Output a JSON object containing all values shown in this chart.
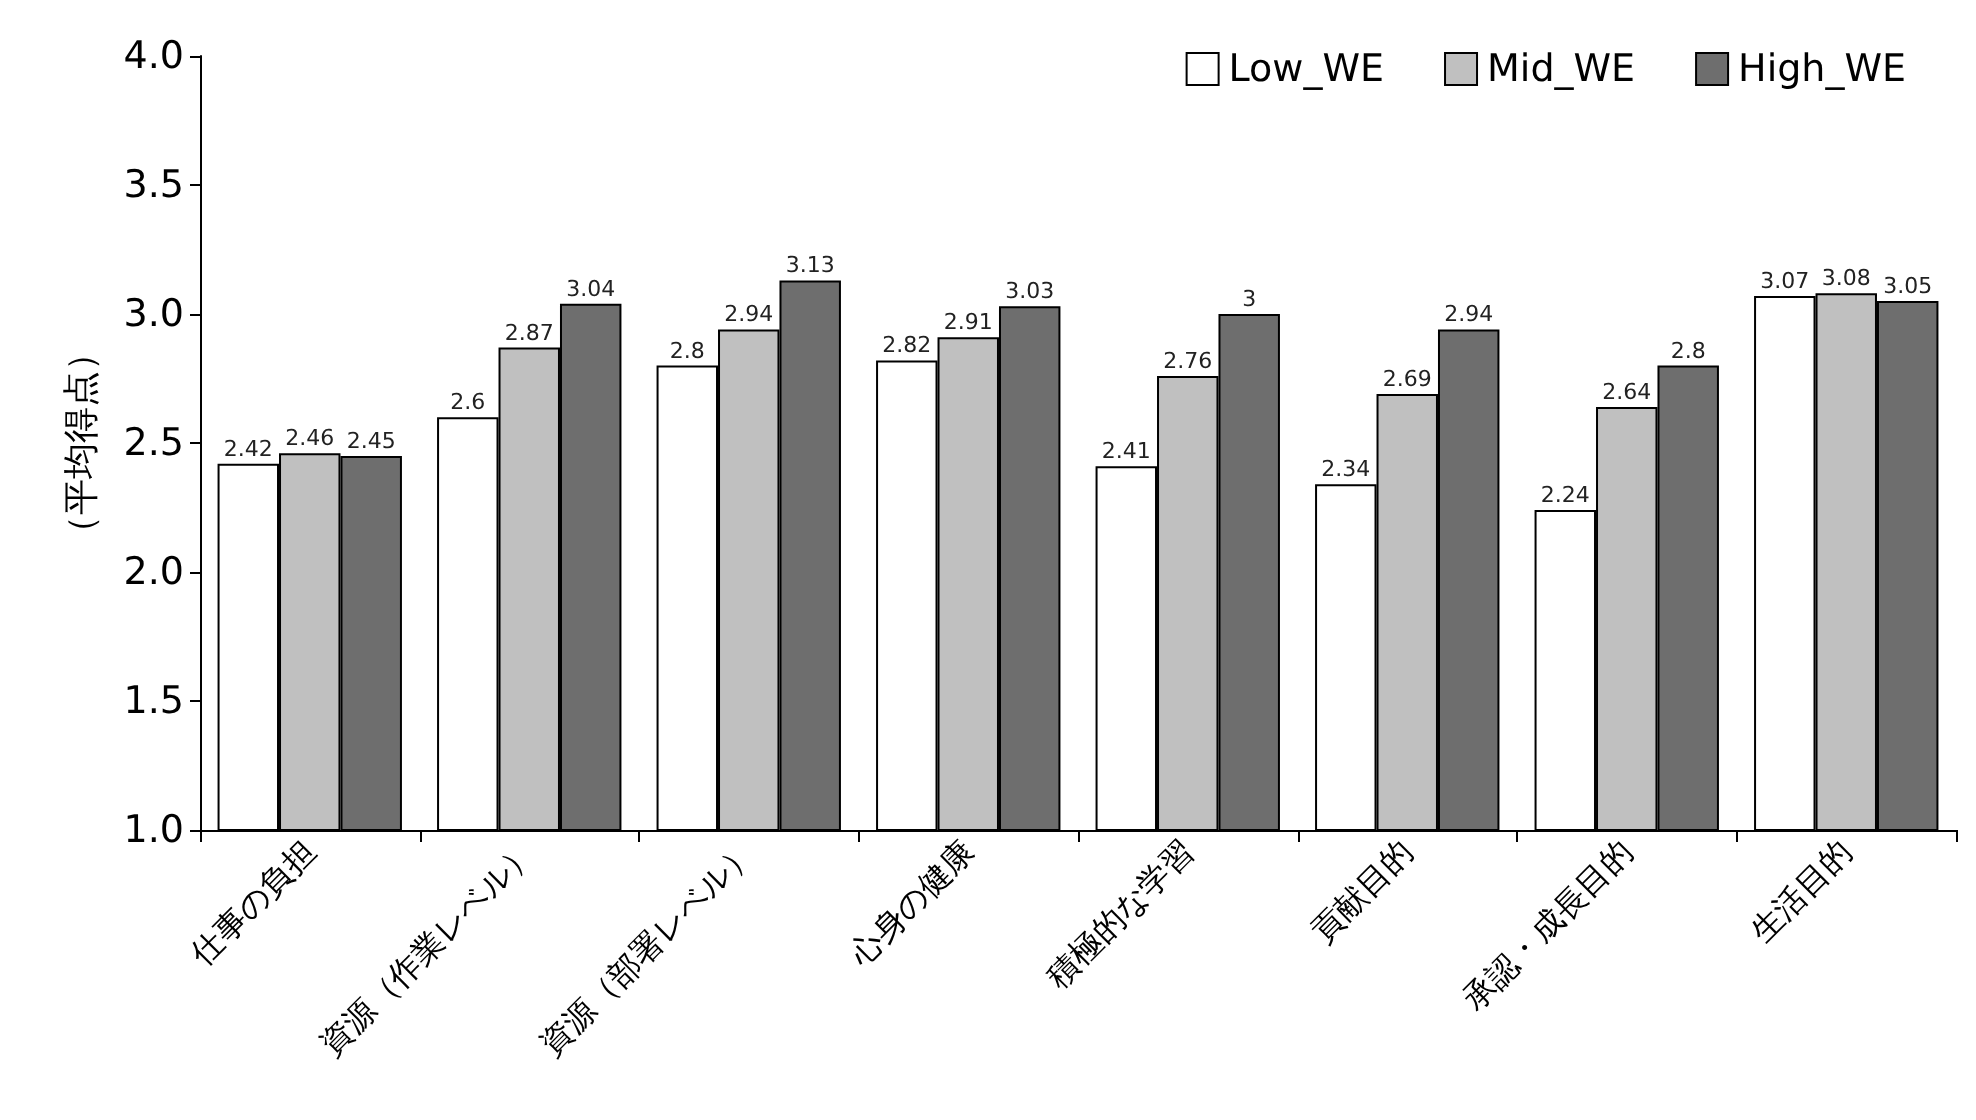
{
  "chart_data": {
    "type": "bar",
    "ylabel": "（平均得点）",
    "categories": [
      "仕事の負担",
      "資源（作業レベル）",
      "資源（部署レベル）",
      "心身の健康",
      "積極的な学習",
      "貢献目的",
      "承認・成長目的",
      "生活目的"
    ],
    "series": [
      {
        "name": "Low_WE",
        "color": "#ffffff",
        "values": [
          2.42,
          2.6,
          2.8,
          2.82,
          2.41,
          2.34,
          2.24,
          3.07
        ]
      },
      {
        "name": "Mid_WE",
        "color": "#c0c0c0",
        "values": [
          2.46,
          2.87,
          2.94,
          2.91,
          2.76,
          2.69,
          2.64,
          3.08
        ]
      },
      {
        "name": "High_WE",
        "color": "#6e6e6e",
        "values": [
          2.45,
          3.04,
          3.13,
          3.03,
          3,
          2.94,
          2.8,
          3.05
        ]
      }
    ],
    "ylim": [
      1,
      4
    ],
    "yticks": [
      {
        "value": 1,
        "label": "1.0"
      },
      1.5,
      {
        "value": 2,
        "label": "2.0"
      },
      2.5,
      {
        "value": 3,
        "label": "3.0"
      },
      3.5,
      {
        "value": 4,
        "label": "4.0"
      }
    ],
    "grid": false,
    "legend": "top right",
    "data_labels": true
  }
}
